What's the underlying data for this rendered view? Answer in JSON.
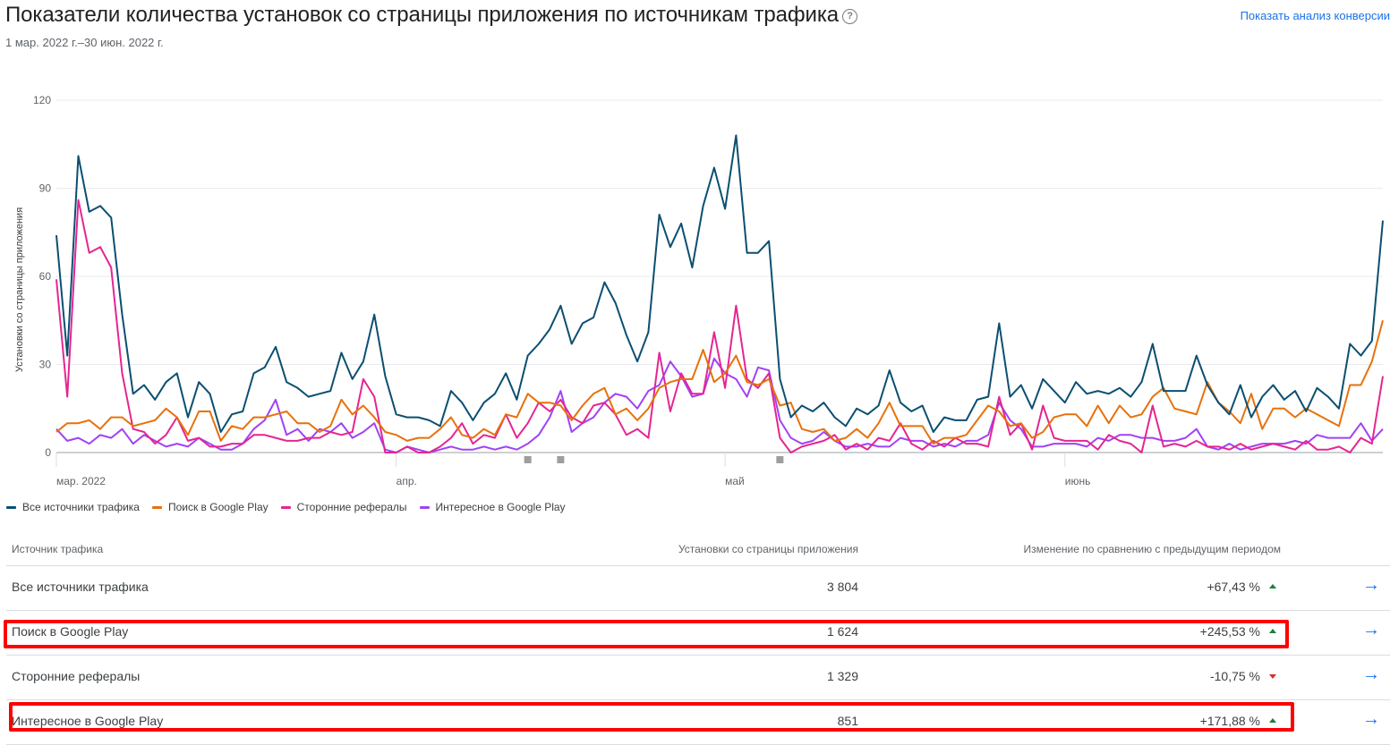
{
  "header": {
    "title": "Показатели количества установок со страницы приложения по источникам трафика",
    "help_icon": "?",
    "date_range": "1 мар. 2022 г.–30 июн. 2022 г.",
    "conversion_link": "Показать анализ конверсии"
  },
  "chart_data": {
    "type": "line",
    "ylabel": "Установки со страницы приложения",
    "ylim": [
      0,
      120
    ],
    "yticks": [
      0,
      30,
      60,
      90,
      120
    ],
    "x_start": "2022-03-01",
    "x_end": "2022-06-30",
    "xticks": [
      {
        "date": "2022-03-01",
        "label": "мар. 2022"
      },
      {
        "date": "2022-04-01",
        "label": "апр."
      },
      {
        "date": "2022-05-01",
        "label": "май"
      },
      {
        "date": "2022-06-01",
        "label": "июнь"
      }
    ],
    "annotation_markers": [
      "2022-04-13",
      "2022-04-16",
      "2022-05-06"
    ],
    "grid": true,
    "series": [
      {
        "name": "Все источники трафика",
        "color": "#0b4f71",
        "values": [
          74,
          33,
          101,
          82,
          84,
          80,
          47,
          20,
          23,
          18,
          24,
          27,
          12,
          24,
          20,
          7,
          13,
          14,
          27,
          29,
          36,
          24,
          22,
          19,
          20,
          21,
          34,
          25,
          31,
          47,
          26,
          13,
          12,
          12,
          11,
          9,
          21,
          17,
          11,
          17,
          20,
          27,
          18,
          33,
          37,
          42,
          50,
          37,
          44,
          46,
          58,
          51,
          40,
          31,
          41,
          81,
          70,
          78,
          63,
          84,
          97,
          83,
          108,
          68,
          68,
          72,
          25,
          12,
          16,
          14,
          17,
          12,
          9,
          15,
          13,
          16,
          28,
          17,
          14,
          16,
          7,
          12,
          11,
          11,
          18,
          19,
          44,
          19,
          23,
          15,
          25,
          21,
          17,
          24,
          20,
          21,
          20,
          22,
          19,
          24,
          37,
          21,
          21,
          21,
          33,
          23,
          17,
          13,
          23,
          12,
          19,
          23,
          18,
          21,
          14,
          22,
          19,
          15,
          37,
          33,
          38,
          79
        ]
      },
      {
        "name": "Поиск в Google Play",
        "color": "#e8710a",
        "values": [
          7,
          10,
          10,
          11,
          8,
          12,
          12,
          9,
          10,
          11,
          15,
          12,
          6,
          14,
          14,
          4,
          9,
          8,
          12,
          12,
          13,
          14,
          10,
          10,
          7,
          9,
          18,
          13,
          16,
          12,
          7,
          6,
          4,
          5,
          5,
          8,
          12,
          6,
          5,
          8,
          6,
          13,
          12,
          20,
          17,
          17,
          16,
          11,
          16,
          20,
          22,
          13,
          15,
          11,
          15,
          22,
          24,
          25,
          25,
          35,
          24,
          27,
          33,
          24,
          23,
          25,
          16,
          17,
          8,
          7,
          8,
          4,
          5,
          8,
          5,
          10,
          17,
          9,
          9,
          9,
          3,
          5,
          5,
          6,
          11,
          16,
          14,
          9,
          10,
          5,
          7,
          12,
          13,
          13,
          9,
          16,
          10,
          16,
          12,
          13,
          19,
          22,
          15,
          14,
          13,
          24,
          17,
          14,
          10,
          20,
          8,
          15,
          15,
          12,
          15,
          13,
          11,
          9,
          23,
          23,
          31,
          45
        ]
      },
      {
        "name": "Сторонние рефералы",
        "color": "#e52592",
        "values": [
          59,
          19,
          86,
          68,
          70,
          63,
          27,
          8,
          7,
          3,
          6,
          12,
          4,
          5,
          2,
          2,
          3,
          3,
          6,
          6,
          5,
          4,
          4,
          5,
          5,
          7,
          6,
          7,
          25,
          19,
          0,
          0,
          2,
          0,
          0,
          2,
          5,
          10,
          3,
          6,
          5,
          13,
          5,
          10,
          17,
          14,
          18,
          12,
          10,
          16,
          17,
          13,
          6,
          8,
          5,
          34,
          14,
          27,
          20,
          20,
          41,
          22,
          50,
          25,
          22,
          27,
          5,
          0,
          2,
          3,
          4,
          6,
          1,
          3,
          1,
          5,
          4,
          10,
          3,
          1,
          4,
          2,
          5,
          3,
          3,
          2,
          19,
          6,
          10,
          1,
          16,
          5,
          4,
          4,
          4,
          1,
          6,
          4,
          3,
          0,
          16,
          2,
          3,
          2,
          4,
          2,
          2,
          1,
          3,
          1,
          2,
          3,
          2,
          1,
          4,
          1,
          1,
          2,
          0,
          5,
          3,
          26
        ]
      },
      {
        "name": "Интересное в Google Play",
        "color": "#a142f4",
        "values": [
          8,
          4,
          5,
          3,
          6,
          5,
          8,
          3,
          6,
          4,
          2,
          3,
          2,
          5,
          3,
          1,
          1,
          3,
          8,
          11,
          18,
          6,
          8,
          4,
          8,
          7,
          10,
          5,
          7,
          10,
          1,
          0,
          2,
          1,
          0,
          1,
          2,
          1,
          1,
          2,
          1,
          2,
          1,
          3,
          6,
          12,
          21,
          7,
          10,
          12,
          17,
          20,
          19,
          15,
          21,
          23,
          31,
          26,
          19,
          20,
          32,
          27,
          25,
          19,
          29,
          28,
          11,
          5,
          3,
          4,
          7,
          4,
          2,
          2,
          3,
          2,
          2,
          5,
          4,
          4,
          2,
          3,
          2,
          4,
          4,
          6,
          17,
          11,
          8,
          2,
          2,
          3,
          3,
          3,
          2,
          5,
          4,
          6,
          6,
          5,
          5,
          4,
          4,
          5,
          8,
          2,
          1,
          3,
          1,
          2,
          3,
          3,
          3,
          4,
          3,
          6,
          5,
          5,
          5,
          10,
          4,
          8
        ]
      }
    ]
  },
  "legend": [
    {
      "label": "Все источники трафика",
      "color": "#0b4f71"
    },
    {
      "label": "Поиск в Google Play",
      "color": "#e8710a"
    },
    {
      "label": "Сторонние рефералы",
      "color": "#e52592"
    },
    {
      "label": "Интересное в Google Play",
      "color": "#a142f4"
    }
  ],
  "table": {
    "headers": [
      "Источник трафика",
      "Установки со страницы приложения",
      "Изменение по сравнению с предыдущим периодом"
    ],
    "rows": [
      {
        "source": "Все источники трафика",
        "installs": "3 804",
        "change": "+67,43 %",
        "trend": "up"
      },
      {
        "source": "Поиск в Google Play",
        "installs": "1 624",
        "change": "+245,53 %",
        "trend": "up"
      },
      {
        "source": "Сторонние рефералы",
        "installs": "1 329",
        "change": "-10,75 %",
        "trend": "down"
      },
      {
        "source": "Интересное в Google Play",
        "installs": "851",
        "change": "+171,88 %",
        "trend": "up"
      }
    ],
    "row_action_icon": "→"
  }
}
